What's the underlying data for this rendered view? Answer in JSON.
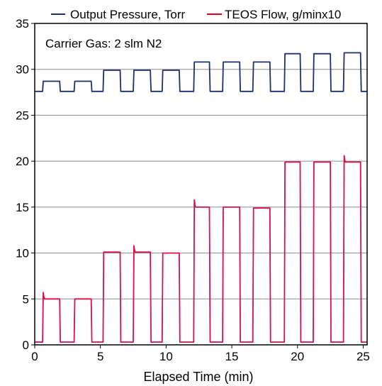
{
  "chart_data": {
    "type": "line",
    "xlabel": "Elapsed Time (min)",
    "ylabel": "",
    "xlim": [
      0,
      25.3
    ],
    "ylim": [
      0,
      35
    ],
    "x_ticks": [
      0,
      5,
      10,
      15,
      20,
      25
    ],
    "y_ticks": [
      0,
      5,
      10,
      15,
      20,
      25,
      30,
      35
    ],
    "grid": "horizontal",
    "legend_position": "top",
    "annotation": "Carrier Gas: 2 slm N2",
    "series": [
      {
        "name": "Output Pressure, Torr",
        "color": "#1f2f6e",
        "x": [
          0,
          0.6,
          0.65,
          1.9,
          1.95,
          3.0,
          3.05,
          4.3,
          4.35,
          5.2,
          5.25,
          6.5,
          6.55,
          7.5,
          7.55,
          8.8,
          8.85,
          9.7,
          9.75,
          11.0,
          11.05,
          12.1,
          12.15,
          13.3,
          13.35,
          14.3,
          14.35,
          15.6,
          15.65,
          16.6,
          16.65,
          17.9,
          17.95,
          19.0,
          19.05,
          20.2,
          20.25,
          21.2,
          21.25,
          22.5,
          22.55,
          23.5,
          23.55,
          24.8,
          24.85,
          25.3
        ],
        "y": [
          27.6,
          27.6,
          28.7,
          28.7,
          27.6,
          27.6,
          28.7,
          28.7,
          27.6,
          27.6,
          29.9,
          29.9,
          27.6,
          27.6,
          29.9,
          29.9,
          27.6,
          27.6,
          29.9,
          29.9,
          27.6,
          27.6,
          30.8,
          30.8,
          27.6,
          27.6,
          30.8,
          30.8,
          27.6,
          27.6,
          30.8,
          30.8,
          27.6,
          27.6,
          31.7,
          31.7,
          27.6,
          27.6,
          31.7,
          31.7,
          27.6,
          27.6,
          31.8,
          31.8,
          27.6,
          27.6
        ]
      },
      {
        "name": "TEOS Flow, g/minx10",
        "color": "#d8114a",
        "x": [
          0,
          0.6,
          0.65,
          0.7,
          0.75,
          1.9,
          1.95,
          3.0,
          3.05,
          4.3,
          4.35,
          5.2,
          5.25,
          6.5,
          6.55,
          7.5,
          7.55,
          7.6,
          7.65,
          8.8,
          8.85,
          9.7,
          9.75,
          11.0,
          11.05,
          12.1,
          12.15,
          12.2,
          12.25,
          13.3,
          13.35,
          14.3,
          14.35,
          15.6,
          15.65,
          16.6,
          16.65,
          17.9,
          17.95,
          19.0,
          19.05,
          20.2,
          20.25,
          21.2,
          21.25,
          22.5,
          22.55,
          23.5,
          23.55,
          23.6,
          23.65,
          24.8,
          24.85,
          25.3
        ],
        "y": [
          0.3,
          0.3,
          5.7,
          5.2,
          5.0,
          5.0,
          0.3,
          0.3,
          5.0,
          5.0,
          0.3,
          0.3,
          10.1,
          10.1,
          0.3,
          0.3,
          10.8,
          10.3,
          10.1,
          10.1,
          0.3,
          0.3,
          10.0,
          10.0,
          0.3,
          0.3,
          15.8,
          15.2,
          15.0,
          15.0,
          0.3,
          0.3,
          15.0,
          15.0,
          0.3,
          0.3,
          14.9,
          14.9,
          0.3,
          0.3,
          19.9,
          19.9,
          0.3,
          0.3,
          19.9,
          19.9,
          0.3,
          0.3,
          20.6,
          20.1,
          19.9,
          19.9,
          0.3,
          0.3
        ]
      }
    ]
  }
}
